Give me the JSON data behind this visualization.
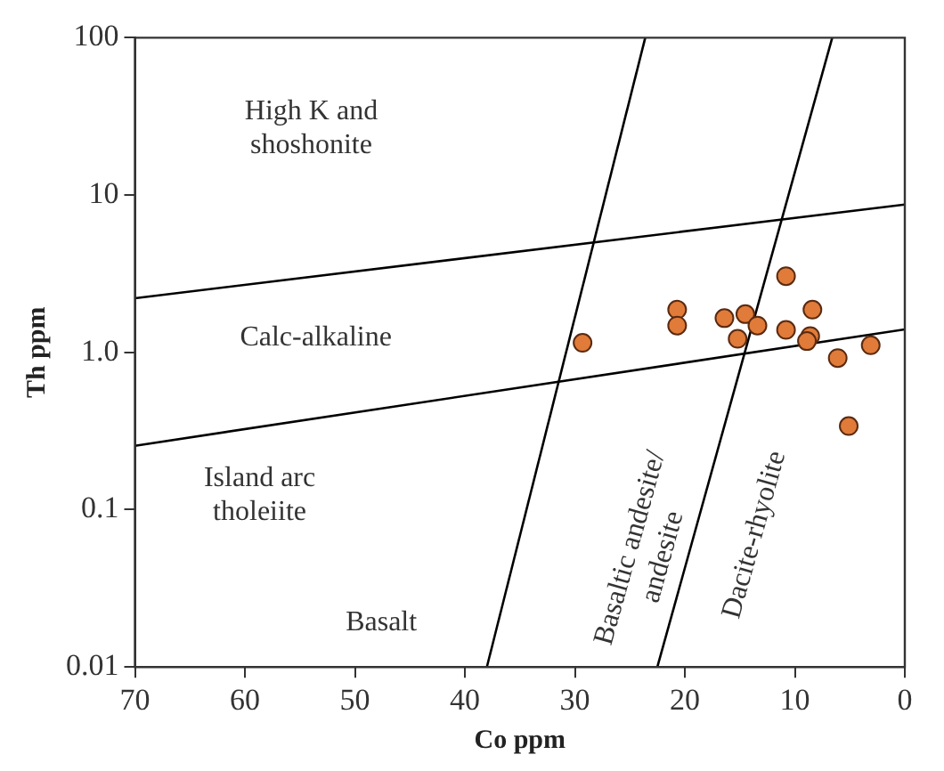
{
  "chart_data": {
    "type": "scatter",
    "xlabel": "Co ppm",
    "ylabel": "Th ppm",
    "xlim": [
      70,
      0
    ],
    "xticks": [
      70,
      60,
      50,
      40,
      30,
      20,
      10,
      0
    ],
    "ylim": [
      0.01,
      100
    ],
    "yticks": [
      {
        "value": 0.01,
        "label": "0.01"
      },
      {
        "value": 0.1,
        "label": "0.1"
      },
      {
        "value": 1,
        "label": "1.0"
      },
      {
        "value": 10,
        "label": "10"
      },
      {
        "value": 100,
        "label": "100"
      }
    ],
    "log": "y",
    "grid": false,
    "legend": false,
    "series": [
      {
        "type": "line",
        "marker": "none",
        "color": "#000000",
        "x": [
          70,
          0
        ],
        "values": [
          2.21,
          8.7
        ]
      },
      {
        "type": "line",
        "marker": "none",
        "color": "#000000",
        "x": [
          70,
          0
        ],
        "values": [
          0.255,
          1.4
        ]
      },
      {
        "type": "line",
        "marker": "none",
        "color": "#000000",
        "x": [
          38,
          23.6
        ],
        "values": [
          0.01,
          100
        ]
      },
      {
        "type": "line",
        "marker": "none",
        "color": "#000000",
        "x": [
          22.5,
          6.6
        ],
        "values": [
          0.01,
          100
        ]
      },
      {
        "marker": "circle",
        "color": "#e07b39",
        "x": [
          29.3,
          20.7,
          20.7,
          16.4,
          14.5,
          13.4,
          15.2,
          10.8,
          10.8,
          8.4,
          8.6,
          8.9,
          6.1,
          3.1,
          5.1
        ],
        "values": [
          1.15,
          1.87,
          1.48,
          1.65,
          1.75,
          1.48,
          1.22,
          3.05,
          1.39,
          1.87,
          1.27,
          1.18,
          0.92,
          1.11,
          0.34
        ]
      }
    ],
    "annotations": [
      "High K and\nshoshonite",
      "Calc-alkaline",
      "Island arc\ntholeiite",
      "Basalt",
      "Basaltic andesite/\nandesite",
      "Dacite-rhyolite"
    ]
  }
}
